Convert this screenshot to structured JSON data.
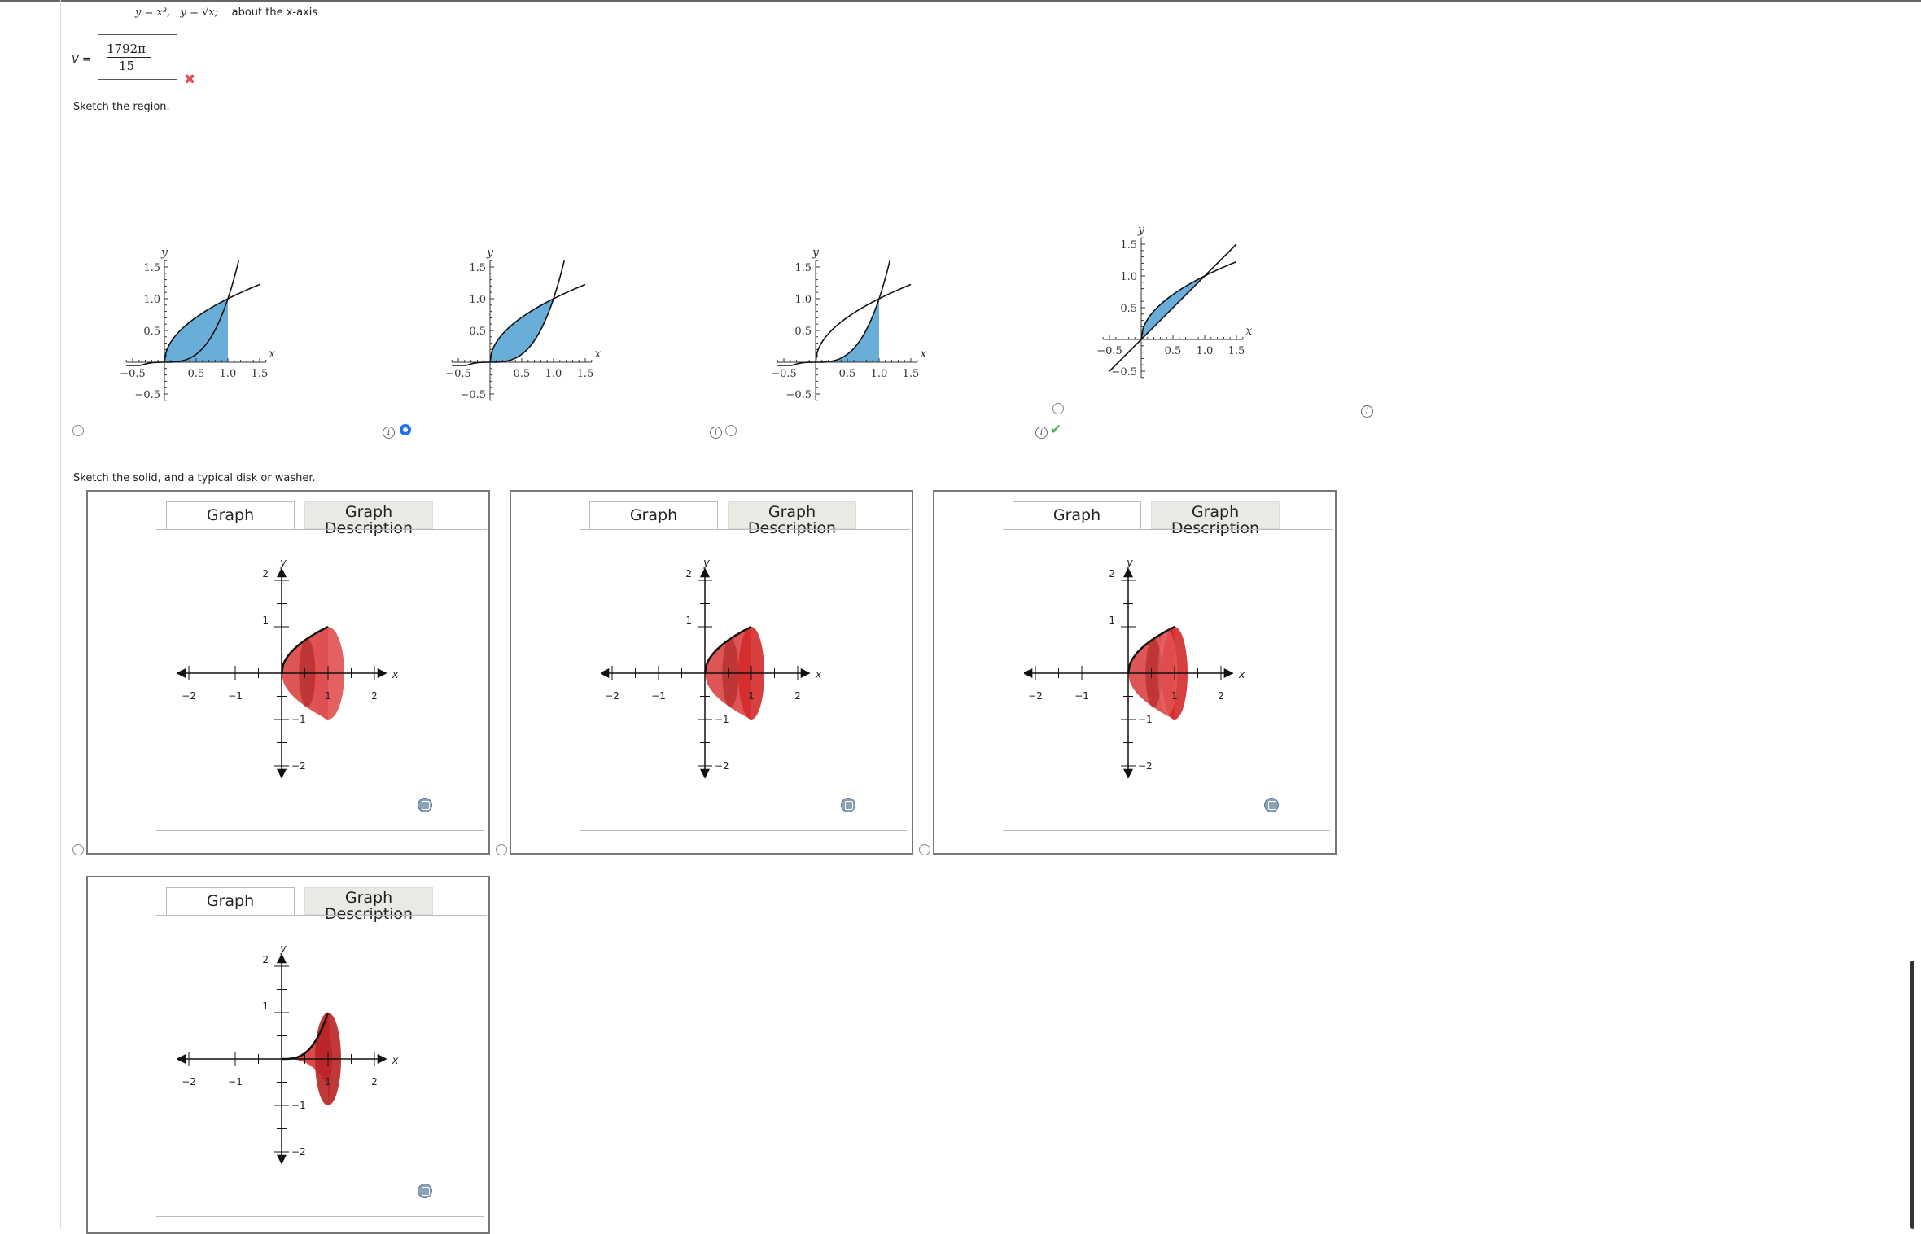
{
  "problem": {
    "curve1": "y = x³,",
    "curve2": "y = √x;",
    "axis_text": "about the x-axis"
  },
  "answer": {
    "label": "V =",
    "numerator": "1792π",
    "denominator": "15",
    "status_icon": "x-mark-icon",
    "status_color": "#e05050"
  },
  "region_section": {
    "instruction": "Sketch the region.",
    "fill_color": "#69aed8",
    "axis_labels": {
      "x": "x",
      "y": "y"
    },
    "ticks_x": [
      "−0.5",
      "0.5",
      "1.0",
      "1.5"
    ],
    "ticks_y": [
      "1.5",
      "1.0",
      "0.5",
      "−0.5"
    ],
    "options": [
      {
        "id": "region-option-1",
        "selected": false,
        "correct": false
      },
      {
        "id": "region-option-2",
        "selected": true,
        "correct": false
      },
      {
        "id": "region-option-3",
        "selected": false,
        "correct": false
      },
      {
        "id": "region-option-4",
        "selected": false,
        "correct": true
      }
    ],
    "correct_icon": "check-icon",
    "correct_color": "#4caf50"
  },
  "solid_section": {
    "instruction": "Sketch the solid, and a typical disk or washer.",
    "tab_graph": "Graph",
    "tab_description": "Graph Description",
    "axis_labels": {
      "x": "x",
      "y": "y"
    },
    "ticks_x": [
      "−2",
      "−1",
      "1",
      "2"
    ],
    "ticks_y": [
      "2",
      "1",
      "−1",
      "−2"
    ],
    "solid_color": "#d42a2a",
    "panels": [
      {
        "id": "solid-option-1",
        "selected": false
      },
      {
        "id": "solid-option-2",
        "selected": false
      },
      {
        "id": "solid-option-3",
        "selected": false
      },
      {
        "id": "solid-option-4",
        "selected": false
      }
    ]
  }
}
